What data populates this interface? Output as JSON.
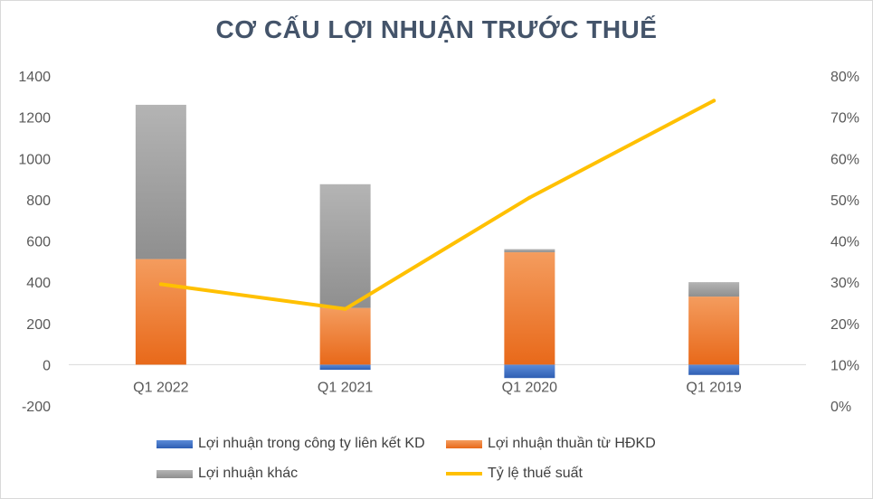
{
  "chart_data": {
    "type": "bar",
    "title": "CƠ CẤU LỢI NHUẬN TRƯỚC THUẾ",
    "categories": [
      "Q1 2022",
      "Q1 2021",
      "Q1 2020",
      "Q1 2019"
    ],
    "series": [
      {
        "name": "Lợi nhuận trong công ty liên kết KD",
        "kind": "stacked-bar",
        "values": [
          0,
          -25,
          -65,
          -50
        ],
        "color": "#4472c4"
      },
      {
        "name": "Lợi nhuận thuần từ HĐKD",
        "kind": "stacked-bar",
        "values": [
          512,
          275,
          545,
          330
        ],
        "color": "#ed7d31"
      },
      {
        "name": "Lợi nhuận khác",
        "kind": "stacked-bar",
        "values": [
          748,
          600,
          15,
          70
        ],
        "color": "#a5a5a5"
      },
      {
        "name": "Tỷ lệ thuế suất",
        "kind": "line",
        "axis": "right",
        "values": [
          29.5,
          23.5,
          50.5,
          74
        ],
        "color": "#ffc000"
      }
    ],
    "left_axis": {
      "ylim": [
        -200,
        1400
      ],
      "ticks": [
        "-200",
        "0",
        "200",
        "400",
        "600",
        "800",
        "1000",
        "1200",
        "1400"
      ],
      "tick_values": [
        -200,
        0,
        200,
        400,
        600,
        800,
        1000,
        1200,
        1400
      ]
    },
    "right_axis": {
      "ylim": [
        0,
        80
      ],
      "ticks": [
        "0%",
        "10%",
        "20%",
        "30%",
        "40%",
        "50%",
        "60%",
        "70%",
        "80%"
      ],
      "tick_values": [
        0,
        10,
        20,
        30,
        40,
        50,
        60,
        70,
        80
      ]
    },
    "grid": false,
    "legend_position": "bottom"
  }
}
